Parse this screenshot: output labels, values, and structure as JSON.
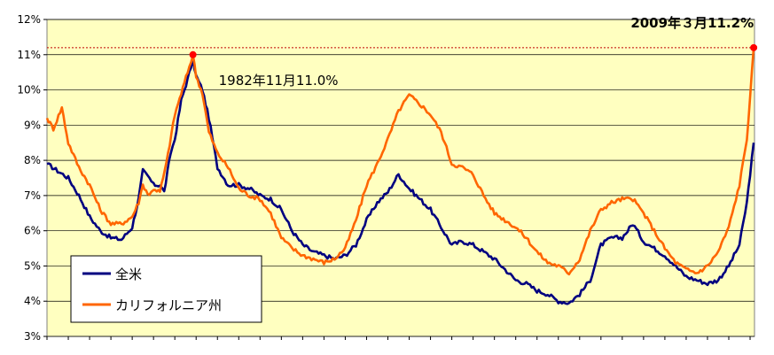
{
  "chart_data": {
    "type": "line",
    "title": "",
    "xlabel": "",
    "ylabel": "",
    "ylim": [
      3,
      12
    ],
    "x_range": [
      "1976-01",
      "2009-03"
    ],
    "y_ticks": [
      "3%",
      "4%",
      "5%",
      "6%",
      "7%",
      "8%",
      "9%",
      "10%",
      "11%",
      "12%"
    ],
    "grid": "horizontal",
    "legend_position": "bottom-left",
    "colors": {
      "plot_background": "#FFFFC0",
      "national": "#000080",
      "california": "#FF6600",
      "reference_line": "#C00000",
      "marker": "#FF0000"
    },
    "series": [
      {
        "name": "全米",
        "points": [
          [
            1976.0,
            7.9
          ],
          [
            1976.5,
            7.7
          ],
          [
            1977.0,
            7.5
          ],
          [
            1977.5,
            7.0
          ],
          [
            1978.0,
            6.4
          ],
          [
            1978.5,
            6.0
          ],
          [
            1979.0,
            5.8
          ],
          [
            1979.5,
            5.75
          ],
          [
            1980.0,
            6.1
          ],
          [
            1980.3,
            6.9
          ],
          [
            1980.5,
            7.7
          ],
          [
            1980.8,
            7.5
          ],
          [
            1981.0,
            7.3
          ],
          [
            1981.3,
            7.3
          ],
          [
            1981.5,
            7.1
          ],
          [
            1981.8,
            8.2
          ],
          [
            1982.0,
            8.6
          ],
          [
            1982.3,
            9.7
          ],
          [
            1982.6,
            10.3
          ],
          [
            1982.85,
            10.85
          ],
          [
            1983.0,
            10.4
          ],
          [
            1983.3,
            10.0
          ],
          [
            1983.6,
            9.2
          ],
          [
            1984.0,
            7.8
          ],
          [
            1984.5,
            7.3
          ],
          [
            1985.0,
            7.3
          ],
          [
            1985.5,
            7.2
          ],
          [
            1986.0,
            7.0
          ],
          [
            1986.5,
            6.9
          ],
          [
            1987.0,
            6.6
          ],
          [
            1987.5,
            6.0
          ],
          [
            1988.0,
            5.6
          ],
          [
            1988.5,
            5.4
          ],
          [
            1989.0,
            5.3
          ],
          [
            1989.5,
            5.2
          ],
          [
            1990.0,
            5.3
          ],
          [
            1990.5,
            5.6
          ],
          [
            1991.0,
            6.3
          ],
          [
            1991.5,
            6.8
          ],
          [
            1992.0,
            7.1
          ],
          [
            1992.5,
            7.6
          ],
          [
            1993.0,
            7.2
          ],
          [
            1993.5,
            6.9
          ],
          [
            1994.0,
            6.6
          ],
          [
            1994.5,
            6.1
          ],
          [
            1995.0,
            5.6
          ],
          [
            1995.5,
            5.7
          ],
          [
            1996.0,
            5.6
          ],
          [
            1996.5,
            5.4
          ],
          [
            1997.0,
            5.2
          ],
          [
            1997.5,
            4.9
          ],
          [
            1998.0,
            4.6
          ],
          [
            1998.5,
            4.5
          ],
          [
            1999.0,
            4.3
          ],
          [
            1999.5,
            4.2
          ],
          [
            2000.0,
            4.0
          ],
          [
            2000.5,
            3.95
          ],
          [
            2001.0,
            4.2
          ],
          [
            2001.5,
            4.6
          ],
          [
            2002.0,
            5.6
          ],
          [
            2002.5,
            5.8
          ],
          [
            2003.0,
            5.8
          ],
          [
            2003.5,
            6.2
          ],
          [
            2004.0,
            5.7
          ],
          [
            2004.5,
            5.5
          ],
          [
            2005.0,
            5.3
          ],
          [
            2005.5,
            5.0
          ],
          [
            2006.0,
            4.7
          ],
          [
            2006.5,
            4.6
          ],
          [
            2007.0,
            4.5
          ],
          [
            2007.5,
            4.6
          ],
          [
            2008.0,
            5.0
          ],
          [
            2008.5,
            5.6
          ],
          [
            2008.85,
            6.8
          ],
          [
            2009.0,
            7.6
          ],
          [
            2009.17,
            8.5
          ]
        ]
      },
      {
        "name": "カリフォルニア州",
        "points": [
          [
            1976.0,
            9.2
          ],
          [
            1976.3,
            8.9
          ],
          [
            1976.7,
            9.5
          ],
          [
            1977.0,
            8.5
          ],
          [
            1977.5,
            7.8
          ],
          [
            1978.0,
            7.3
          ],
          [
            1978.5,
            6.6
          ],
          [
            1979.0,
            6.2
          ],
          [
            1979.5,
            6.2
          ],
          [
            1980.0,
            6.4
          ],
          [
            1980.3,
            6.8
          ],
          [
            1980.5,
            7.3
          ],
          [
            1980.8,
            7.0
          ],
          [
            1981.0,
            7.2
          ],
          [
            1981.3,
            7.1
          ],
          [
            1981.6,
            7.9
          ],
          [
            1982.0,
            9.3
          ],
          [
            1982.3,
            9.9
          ],
          [
            1982.6,
            10.5
          ],
          [
            1982.85,
            11.0
          ],
          [
            1983.0,
            10.4
          ],
          [
            1983.3,
            9.9
          ],
          [
            1983.6,
            8.8
          ],
          [
            1984.0,
            8.2
          ],
          [
            1984.5,
            7.8
          ],
          [
            1985.0,
            7.2
          ],
          [
            1985.5,
            7.0
          ],
          [
            1986.0,
            6.9
          ],
          [
            1986.5,
            6.5
          ],
          [
            1987.0,
            5.8
          ],
          [
            1987.5,
            5.5
          ],
          [
            1988.0,
            5.3
          ],
          [
            1988.5,
            5.2
          ],
          [
            1989.0,
            5.1
          ],
          [
            1989.5,
            5.2
          ],
          [
            1990.0,
            5.5
          ],
          [
            1990.5,
            6.3
          ],
          [
            1991.0,
            7.3
          ],
          [
            1991.5,
            7.9
          ],
          [
            1992.0,
            8.6
          ],
          [
            1992.5,
            9.4
          ],
          [
            1993.0,
            9.85
          ],
          [
            1993.5,
            9.6
          ],
          [
            1994.0,
            9.3
          ],
          [
            1994.5,
            8.8
          ],
          [
            1995.0,
            7.9
          ],
          [
            1995.5,
            7.8
          ],
          [
            1996.0,
            7.6
          ],
          [
            1996.5,
            7.0
          ],
          [
            1997.0,
            6.5
          ],
          [
            1997.5,
            6.3
          ],
          [
            1998.0,
            6.1
          ],
          [
            1998.5,
            5.8
          ],
          [
            1999.0,
            5.4
          ],
          [
            1999.5,
            5.1
          ],
          [
            2000.0,
            5.0
          ],
          [
            2000.5,
            4.8
          ],
          [
            2001.0,
            5.2
          ],
          [
            2001.5,
            6.0
          ],
          [
            2002.0,
            6.6
          ],
          [
            2002.5,
            6.8
          ],
          [
            2003.0,
            6.9
          ],
          [
            2003.5,
            6.9
          ],
          [
            2004.0,
            6.5
          ],
          [
            2004.5,
            6.0
          ],
          [
            2005.0,
            5.5
          ],
          [
            2005.5,
            5.1
          ],
          [
            2006.0,
            4.9
          ],
          [
            2006.5,
            4.8
          ],
          [
            2007.0,
            5.0
          ],
          [
            2007.5,
            5.4
          ],
          [
            2008.0,
            6.1
          ],
          [
            2008.5,
            7.3
          ],
          [
            2008.85,
            8.6
          ],
          [
            2009.0,
            9.8
          ],
          [
            2009.17,
            11.2
          ]
        ]
      }
    ],
    "reference_line": {
      "y": 11.2
    },
    "annotations": [
      {
        "text": "1982年11月11.0%",
        "x": 1982.85,
        "y": 11.0
      },
      {
        "text_prefix": "2009年３月",
        "text_value": "11.2%",
        "x": 2009.17,
        "y": 11.2
      }
    ]
  }
}
